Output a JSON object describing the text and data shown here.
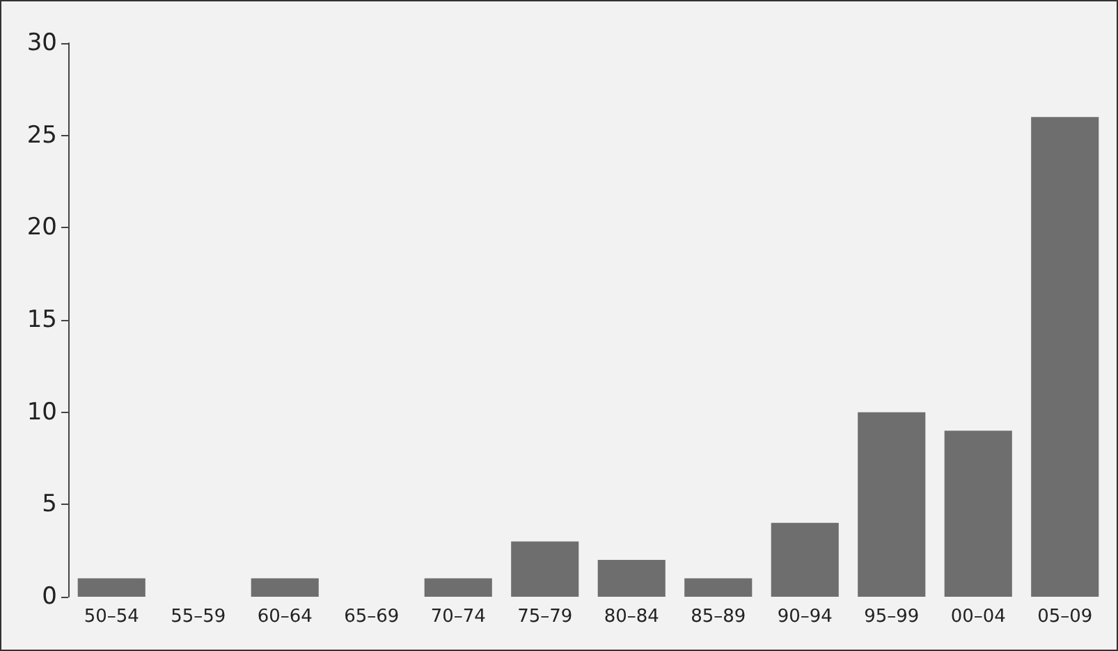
{
  "chart_data": {
    "type": "bar",
    "categories": [
      "50–54",
      "55–59",
      "60–64",
      "65–69",
      "70–74",
      "75–79",
      "80–84",
      "85–89",
      "90–94",
      "95–99",
      "00–04",
      "05–09"
    ],
    "values": [
      1,
      0,
      1,
      0,
      1,
      3,
      2,
      1,
      4,
      10,
      9,
      26
    ],
    "color": "#6e6e6e",
    "ylim": [
      0,
      30
    ],
    "yticks": [
      0,
      5,
      10,
      15,
      20,
      25,
      30
    ],
    "grid": false
  }
}
